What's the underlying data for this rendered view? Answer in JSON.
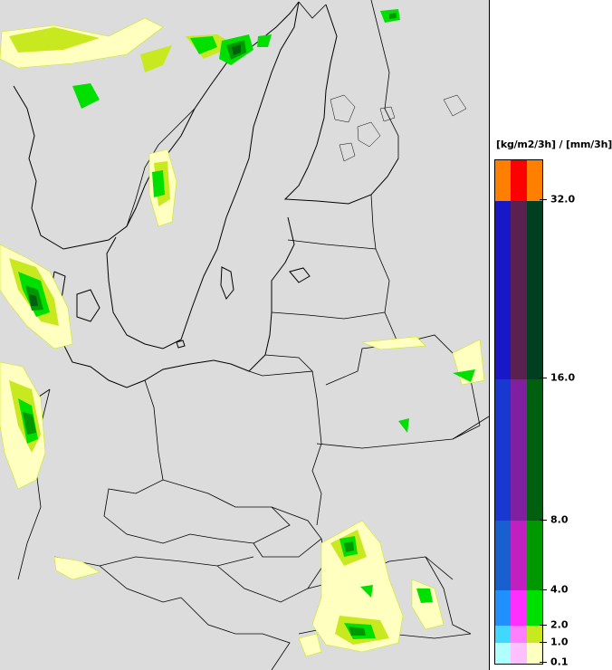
{
  "legend": {
    "unit_label": "[kg/m2/3h] / [mm/3h]",
    "ticks": [
      "32.0",
      "16.0",
      "8.0",
      "4.0",
      "2.0",
      "1.0",
      "0.1"
    ],
    "bands": [
      {
        "colors": [
          "#ff8000",
          "#ff0000",
          "#ff8000"
        ]
      },
      {
        "colors": [
          "#1818c8",
          "#5a2050",
          "#004020"
        ]
      },
      {
        "colors": [
          "#1838d0",
          "#8020a0",
          "#006010"
        ]
      },
      {
        "colors": [
          "#1860d0",
          "#c020c0",
          "#009800"
        ]
      },
      {
        "colors": [
          "#2090ff",
          "#ff30ff",
          "#00e000"
        ]
      },
      {
        "colors": [
          "#40d8ff",
          "#ff80ff",
          "#c8e820"
        ]
      },
      {
        "colors": [
          "#b0ffff",
          "#ffc0ff",
          "#ffffc0"
        ]
      }
    ]
  },
  "map": {
    "background": "#dcdcdc",
    "precip_colors": [
      "#ffffc0",
      "#c8e820",
      "#00e000",
      "#009800",
      "#006010"
    ]
  }
}
